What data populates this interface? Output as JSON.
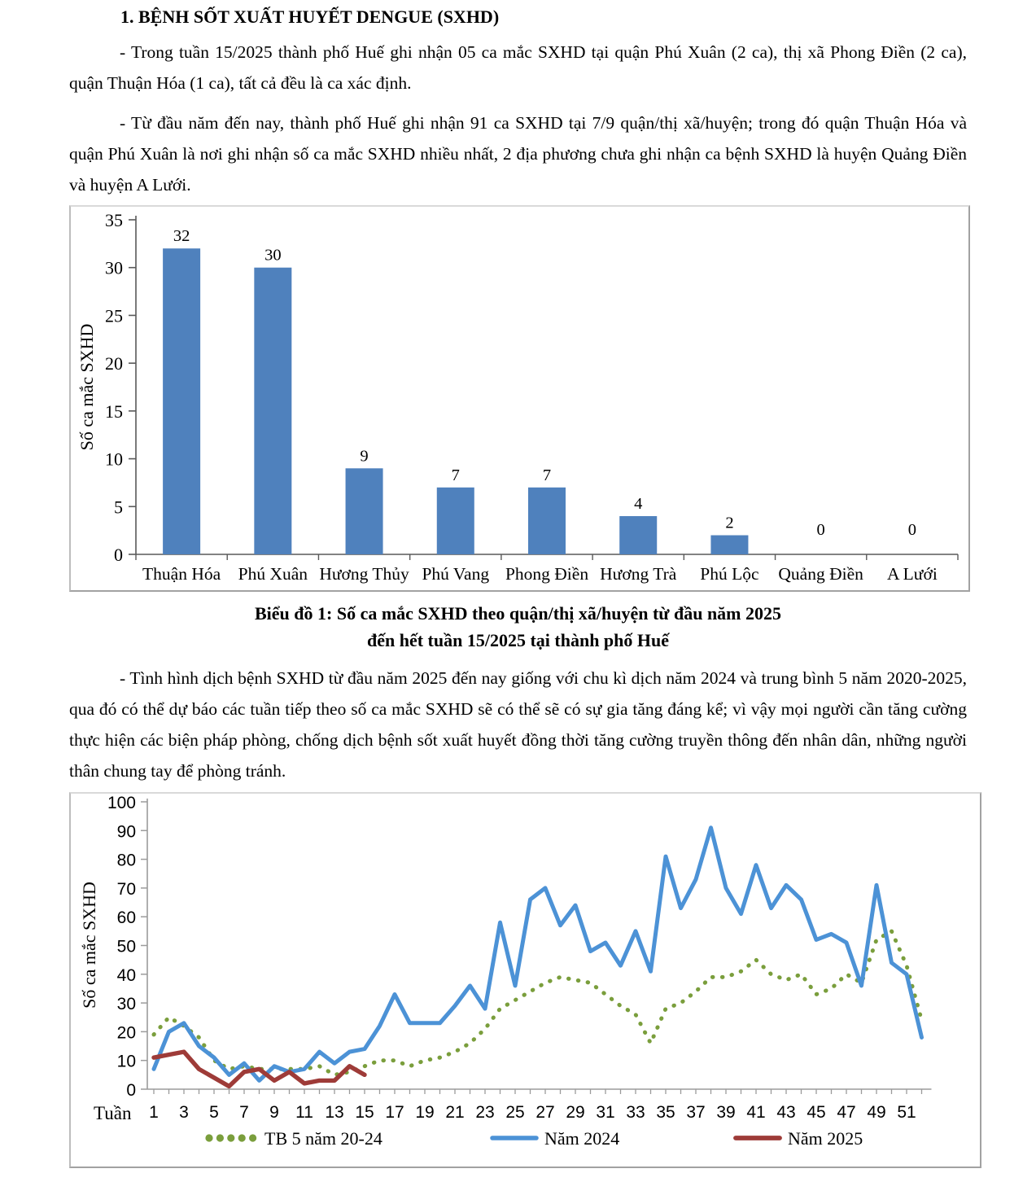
{
  "document": {
    "heading": "1. BỆNH SỐT XUẤT HUYẾT DENGUE (SXHD)",
    "paragraphs": [
      "- Trong tuần 15/2025 thành phố Huế ghi nhận 05 ca mắc SXHD tại quận Phú Xuân (2 ca), thị xã Phong Điền (2 ca), quận Thuận Hóa (1 ca), tất cả đều là ca xác định.",
      "- Từ đầu năm đến nay, thành phố Huế ghi nhận 91 ca SXHD tại 7/9 quận/thị xã/huyện; trong đó quận Thuận Hóa và quận Phú Xuân là nơi ghi nhận số ca mắc SXHD nhiều nhất, 2 địa phương chưa ghi nhận ca bệnh SXHD là huyện Quảng Điền và huyện A Lưới.",
      "- Tình hình dịch bệnh SXHD từ đầu năm 2025 đến nay giống với chu kì dịch năm 2024 và trung bình 5 năm 2020-2025, qua đó có thể dự báo các tuần tiếp theo số ca mắc SXHD sẽ có thể sẽ có sự gia tăng đáng kể; vì vậy mọi người cần tăng cường thực hiện các biện pháp phòng, chống dịch bệnh sốt xuất huyết đồng thời tăng cường truyền thông đến nhân dân, những người thân chung tay để phòng tránh."
    ]
  },
  "figure_caption": {
    "line1": "Biểu đồ 1: Số ca mắc SXHD theo quận/thị xã/huyện từ đầu năm 2025",
    "line2": "đến hết tuần 15/2025 tại thành phố Huế"
  },
  "chart_data": [
    {
      "type": "bar",
      "title": "",
      "ylabel": "Số ca mắc SXHD",
      "categories": [
        "Thuận Hóa",
        "Phú Xuân",
        "Hương Thủy",
        "Phú Vang",
        "Phong Điền",
        "Hương Trà",
        "Phú Lộc",
        "Quảng Điền",
        "A Lưới"
      ],
      "values": [
        32,
        30,
        9,
        7,
        7,
        4,
        2,
        0,
        0
      ],
      "ylim": [
        0,
        35
      ],
      "ytick_step": 5,
      "grid": false,
      "value_labels": true,
      "bar_color": "#4F81BD",
      "axis_color": "#595959"
    },
    {
      "type": "line",
      "title": "",
      "ylabel": "Số ca mắc  SXHD",
      "xlabel": "Tuần",
      "x": [
        1,
        2,
        3,
        4,
        5,
        6,
        7,
        8,
        9,
        10,
        11,
        12,
        13,
        14,
        15,
        16,
        17,
        18,
        19,
        20,
        21,
        22,
        23,
        24,
        25,
        26,
        27,
        28,
        29,
        30,
        31,
        32,
        33,
        34,
        35,
        36,
        37,
        38,
        39,
        40,
        41,
        42,
        43,
        44,
        45,
        46,
        47,
        48,
        49,
        50,
        51,
        52
      ],
      "xtick_labels": [
        1,
        3,
        5,
        7,
        9,
        11,
        13,
        15,
        17,
        19,
        21,
        23,
        25,
        27,
        29,
        31,
        33,
        35,
        37,
        39,
        41,
        43,
        45,
        47,
        49,
        51
      ],
      "ylim": [
        0,
        100
      ],
      "ytick_step": 10,
      "grid": false,
      "legend_position": "bottom",
      "axis_color": "#9b9b9b",
      "series": [
        {
          "name": "TB 5 năm 20-24",
          "style": "dotted",
          "color": "#7A9E3C",
          "values": [
            19,
            25,
            22,
            18,
            10,
            7,
            8,
            7,
            7,
            7,
            7,
            8,
            5,
            6,
            8,
            10,
            10,
            8,
            10,
            11,
            13,
            16,
            21,
            28,
            31,
            34,
            37,
            39,
            38,
            37,
            33,
            29,
            26,
            16,
            28,
            30,
            34,
            39,
            39,
            41,
            45,
            40,
            38,
            40,
            33,
            35,
            40,
            37,
            52,
            55,
            43,
            24
          ]
        },
        {
          "name": "Năm 2024",
          "style": "solid",
          "color": "#4C92D6",
          "values": [
            7,
            20,
            23,
            15,
            11,
            5,
            9,
            3,
            8,
            6,
            7,
            13,
            9,
            13,
            14,
            22,
            33,
            23,
            23,
            23,
            29,
            36,
            28,
            58,
            36,
            66,
            70,
            57,
            64,
            48,
            51,
            43,
            55,
            41,
            81,
            63,
            73,
            91,
            70,
            61,
            78,
            63,
            71,
            66,
            52,
            54,
            51,
            36,
            71,
            44,
            40,
            18
          ]
        },
        {
          "name": "Năm 2025",
          "style": "solid",
          "color": "#9E3B38",
          "values": [
            11,
            12,
            13,
            7,
            4,
            1,
            6,
            7,
            3,
            6,
            2,
            3,
            3,
            8,
            5
          ]
        }
      ]
    }
  ],
  "colors": {
    "bar_fill": "#4F81BD",
    "line_2024": "#4C92D6",
    "line_2025": "#9E3B38",
    "line_avg": "#7A9E3C",
    "chart_border": "#a2a2a2",
    "text": "#000000"
  }
}
